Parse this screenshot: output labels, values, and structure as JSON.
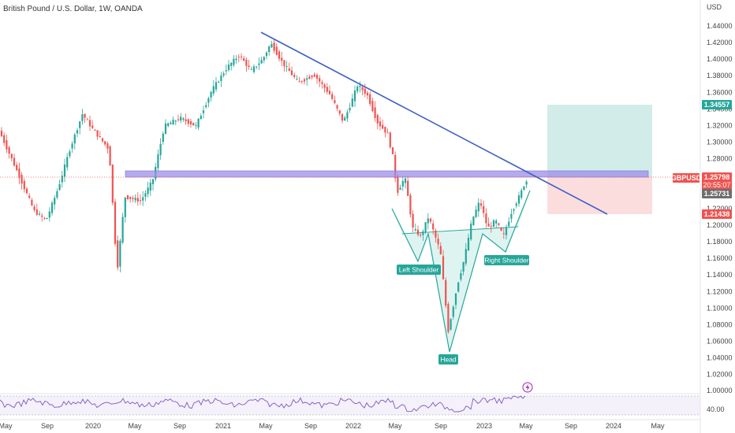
{
  "header": {
    "title": "British Pound / U.S. Dollar, 1W, OANDA",
    "currency": "USD"
  },
  "colors": {
    "up": "#26a69a",
    "down": "#ef5350",
    "trendline": "#3d5fc4",
    "resistance_zone": "#9c8ee8",
    "target_zone": "#b2dfdb",
    "stop_zone": "#fbcfcf",
    "pattern_fill": "#d0f0eb",
    "pattern_line": "#26a69a",
    "oscillator": "#7e57c2"
  },
  "price_badges": {
    "target": "1.34557",
    "symbol": "GBPUSD",
    "last": "1.25798",
    "countdown": "20:55:07",
    "entry": "1.25731",
    "stop": "1.21438"
  },
  "pattern_labels": {
    "left": "Left Shoulder",
    "head": "Head",
    "right": "Right Shoulder"
  },
  "oscillator": {
    "upper_level": "1.00000",
    "lower_level": "40.00"
  },
  "chart_data": {
    "type": "candlestick",
    "title": "British Pound / U.S. Dollar, 1W, OANDA",
    "y_unit": "USD",
    "ylim": [
      1.0,
      1.45
    ],
    "y_ticks": [
      "1.44000",
      "1.42000",
      "1.40000",
      "1.38000",
      "1.36000",
      "1.34000",
      "1.32000",
      "1.30000",
      "1.28000",
      "1.26000",
      "1.24000",
      "1.22000",
      "1.20000",
      "1.18000",
      "1.16000",
      "1.14000",
      "1.12000",
      "1.10000",
      "1.08000",
      "1.06000",
      "1.04000",
      "1.02000"
    ],
    "x_labels": [
      "May",
      "Sep",
      "2020",
      "May",
      "Sep",
      "2021",
      "May",
      "Sep",
      "2022",
      "May",
      "Sep",
      "2023",
      "May",
      "Sep",
      "2024",
      "May"
    ],
    "key_points": [
      {
        "x": "2020 Mar",
        "y": 1.143
      },
      {
        "x": "2021 May",
        "y": 1.425
      },
      {
        "x": "2022 Sep",
        "y": 1.035
      },
      {
        "x": "2023 May",
        "y": 1.258
      }
    ],
    "trendline": [
      {
        "x": "2021 May",
        "y": 1.434
      },
      {
        "x": "2023 Nov",
        "y": 1.212
      }
    ],
    "resistance_zone": [
      1.257,
      1.264
    ],
    "trade": {
      "target": 1.34557,
      "entry": 1.25731,
      "stop": 1.21438
    },
    "grid": false
  }
}
